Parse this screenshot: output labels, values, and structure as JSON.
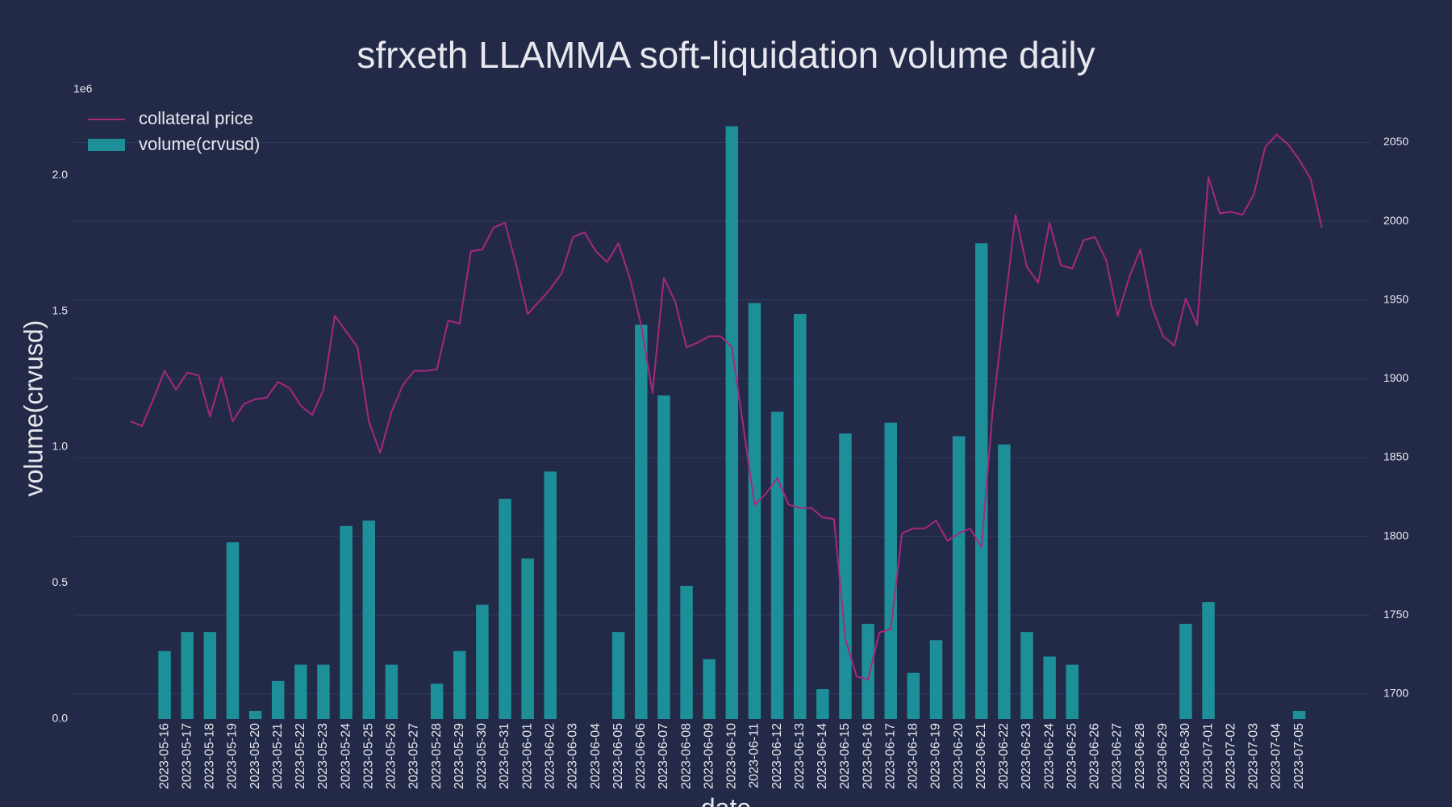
{
  "chart_data": {
    "type": "combo",
    "title": "sfrxeth LLAMMA soft-liquidation volume daily",
    "x_label": "date",
    "y_label": "volume(crvusd)",
    "y_offset_label": "1e6",
    "categories": [
      "2023-05-16",
      "2023-05-17",
      "2023-05-18",
      "2023-05-19",
      "2023-05-20",
      "2023-05-21",
      "2023-05-22",
      "2023-05-23",
      "2023-05-24",
      "2023-05-25",
      "2023-05-26",
      "2023-05-27",
      "2023-05-28",
      "2023-05-29",
      "2023-05-30",
      "2023-05-31",
      "2023-06-01",
      "2023-06-02",
      "2023-06-03",
      "2023-06-04",
      "2023-06-05",
      "2023-06-06",
      "2023-06-07",
      "2023-06-08",
      "2023-06-09",
      "2023-06-10",
      "2023-06-11",
      "2023-06-12",
      "2023-06-13",
      "2023-06-14",
      "2023-06-15",
      "2023-06-16",
      "2023-06-17",
      "2023-06-18",
      "2023-06-19",
      "2023-06-20",
      "2023-06-21",
      "2023-06-22",
      "2023-06-23",
      "2023-06-24",
      "2023-06-25",
      "2023-06-26",
      "2023-06-27",
      "2023-06-28",
      "2023-06-29",
      "2023-06-30",
      "2023-07-01",
      "2023-07-02",
      "2023-07-03",
      "2023-07-04",
      "2023-07-05"
    ],
    "series": [
      {
        "name": "collateral price",
        "type": "line",
        "axis": "y2",
        "color": "#a8287c",
        "x": [
          "2023-05-14 12:00",
          "2023-05-15 00:00",
          "2023-05-15 12:00",
          "2023-05-16 00:00",
          "2023-05-16 12:00",
          "2023-05-17 00:00",
          "2023-05-17 12:00",
          "2023-05-18 00:00",
          "2023-05-18 12:00",
          "2023-05-19 00:00",
          "2023-05-19 12:00",
          "2023-05-20 00:00",
          "2023-05-20 12:00",
          "2023-05-21 00:00",
          "2023-05-21 12:00",
          "2023-05-22 00:00",
          "2023-05-22 12:00",
          "2023-05-23 00:00",
          "2023-05-23 12:00",
          "2023-05-24 00:00",
          "2023-05-24 12:00",
          "2023-05-25 00:00",
          "2023-05-25 12:00",
          "2023-05-26 00:00",
          "2023-05-26 12:00",
          "2023-05-27 00:00",
          "2023-05-27 12:00",
          "2023-05-28 00:00",
          "2023-05-28 12:00",
          "2023-05-29 00:00",
          "2023-05-29 12:00",
          "2023-05-30 00:00",
          "2023-05-30 12:00",
          "2023-05-31 00:00",
          "2023-05-31 12:00",
          "2023-06-01 00:00",
          "2023-06-01 12:00",
          "2023-06-02 00:00",
          "2023-06-02 12:00",
          "2023-06-03 00:00",
          "2023-06-03 12:00",
          "2023-06-04 00:00",
          "2023-06-04 12:00",
          "2023-06-05 00:00",
          "2023-06-05 12:00",
          "2023-06-06 00:00",
          "2023-06-06 12:00",
          "2023-06-07 00:00",
          "2023-06-07 12:00",
          "2023-06-08 00:00",
          "2023-06-08 12:00",
          "2023-06-09 00:00",
          "2023-06-09 12:00",
          "2023-06-10 00:00",
          "2023-06-10 12:00",
          "2023-06-11 00:00",
          "2023-06-11 12:00",
          "2023-06-12 00:00",
          "2023-06-12 12:00",
          "2023-06-13 00:00",
          "2023-06-13 12:00",
          "2023-06-14 00:00",
          "2023-06-14 12:00",
          "2023-06-15 00:00",
          "2023-06-15 12:00",
          "2023-06-16 00:00",
          "2023-06-16 12:00",
          "2023-06-17 00:00",
          "2023-06-17 12:00",
          "2023-06-18 00:00",
          "2023-06-18 12:00",
          "2023-06-19 00:00",
          "2023-06-19 12:00",
          "2023-06-20 00:00",
          "2023-06-20 12:00",
          "2023-06-21 00:00",
          "2023-06-21 12:00",
          "2023-06-22 00:00",
          "2023-06-22 12:00",
          "2023-06-23 00:00",
          "2023-06-23 12:00",
          "2023-06-24 00:00",
          "2023-06-24 12:00",
          "2023-06-25 00:00",
          "2023-06-25 12:00",
          "2023-06-26 00:00",
          "2023-06-26 12:00",
          "2023-06-27 00:00",
          "2023-06-27 12:00",
          "2023-06-28 00:00",
          "2023-06-28 12:00",
          "2023-06-29 00:00",
          "2023-06-29 12:00",
          "2023-06-30 00:00",
          "2023-06-30 12:00",
          "2023-07-01 00:00",
          "2023-07-01 12:00",
          "2023-07-02 00:00",
          "2023-07-02 12:00",
          "2023-07-03 00:00",
          "2023-07-03 12:00",
          "2023-07-04 00:00",
          "2023-07-04 12:00",
          "2023-07-05 00:00",
          "2023-07-05 12:00",
          "2023-07-06 00:00"
        ],
        "values": [
          1873,
          1870,
          1887,
          1905,
          1893,
          1904,
          1902,
          1876,
          1901,
          1873,
          1884,
          1887,
          1888,
          1898,
          1894,
          1883,
          1877,
          1893,
          1940,
          1930,
          1920,
          1873,
          1853,
          1879,
          1896,
          1905,
          1905,
          1906,
          1937,
          1935,
          1981,
          1982,
          1996,
          1999,
          1972,
          1941,
          1949,
          1957,
          1967,
          1990,
          1993,
          1981,
          1974,
          1986,
          1964,
          1934,
          1891,
          1964,
          1949,
          1920,
          1923,
          1927,
          1927,
          1920,
          1870,
          1820,
          1827,
          1837,
          1820,
          1818,
          1818,
          1812,
          1811,
          1735,
          1711,
          1709,
          1739,
          1741,
          1802,
          1805,
          1805,
          1810,
          1797,
          1802,
          1805,
          1793,
          1881,
          1943,
          2004,
          1971,
          1961,
          1999,
          1972,
          1970,
          1988,
          1990,
          1975,
          1940,
          1964,
          1982,
          1946,
          1927,
          1921,
          1951,
          1934,
          2028,
          2005,
          2006,
          2004,
          2017,
          2047,
          2055,
          2049,
          2039,
          2027,
          1996
        ]
      },
      {
        "name": "volume(crvusd)",
        "type": "bar",
        "color": "#1d8f99",
        "values": [
          0.25,
          0.32,
          0.32,
          0.65,
          0.03,
          0.14,
          0.2,
          0.2,
          0.71,
          0.73,
          0.2,
          0,
          0.13,
          0.25,
          0.42,
          0.81,
          0.59,
          0.91,
          0,
          0,
          0.32,
          1.45,
          1.19,
          0.49,
          0.22,
          2.18,
          1.53,
          1.13,
          1.49,
          0.11,
          1.05,
          0.35,
          1.09,
          0.17,
          0.29,
          1.04,
          1.75,
          1.01,
          0.32,
          0.23,
          0.2,
          0,
          0,
          0,
          0,
          0.35,
          0.43,
          0,
          0,
          0,
          0.03
        ]
      }
    ],
    "ylim": [
      0,
      2.3
    ],
    "yticks": [
      {
        "value": 0,
        "label": "0.0"
      },
      0.5,
      {
        "value": 1,
        "label": "1.0"
      },
      1.5,
      {
        "value": 2,
        "label": "2.0"
      }
    ],
    "y2lim": [
      1684,
      2081
    ],
    "y2ticks": [
      1700,
      1750,
      1800,
      1850,
      1900,
      1950,
      2000,
      2050
    ],
    "grid": true,
    "legend": "upper left"
  }
}
